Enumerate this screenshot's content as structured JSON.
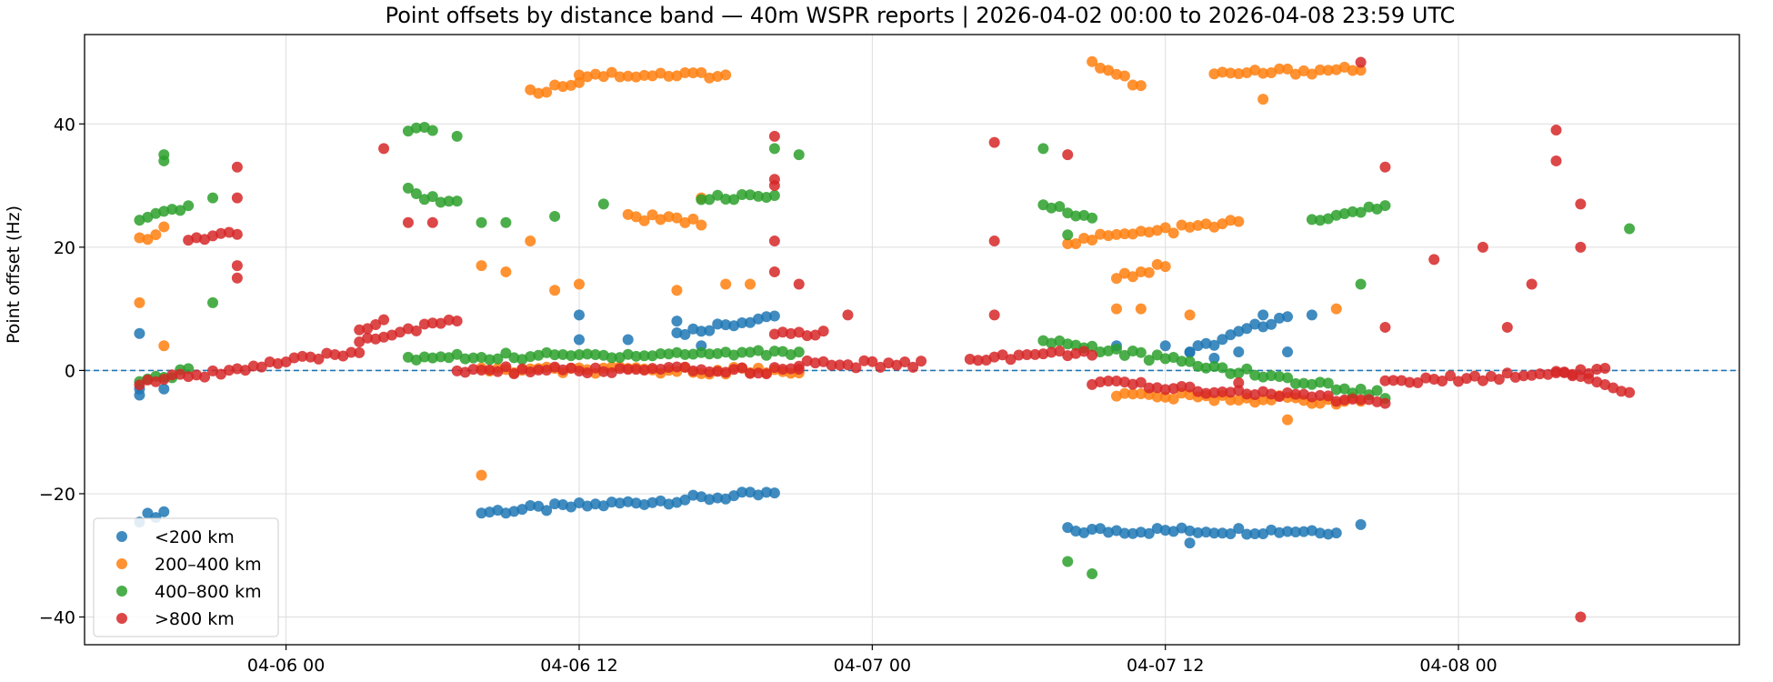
{
  "chart_data": {
    "type": "scatter",
    "title": "Point offsets by distance band — 40m WSPR reports | 2026-04-02 00:00 to 2026-04-08 23:59 UTC",
    "xlabel": "",
    "ylabel": "Point offset (Hz)",
    "x_tick_labels": [
      "04-06 00",
      "04-06 12",
      "04-07 00",
      "04-07 12",
      "04-08 00"
    ],
    "x_ticks": [
      "2026-04-06 00:00",
      "2026-04-06 12:00",
      "2026-04-07 00:00",
      "2026-04-07 12:00",
      "2026-04-08 00:00"
    ],
    "xlim": [
      "2026-04-05 15:45",
      "2026-04-08 11:30"
    ],
    "y_ticks": [
      -40,
      -20,
      0,
      20,
      40
    ],
    "y_tick_labels": [
      "−40",
      "−20",
      "0",
      "20",
      "40"
    ],
    "ylim": [
      -44.5,
      54.5
    ],
    "grid": true,
    "reference_line": {
      "y": 0,
      "style": "dashed",
      "color": "#1f77b4"
    },
    "legend_position": "lower-left",
    "colors": [
      "#1f77b4",
      "#ff7f0e",
      "#2ca02c",
      "#d62728"
    ],
    "series": [
      {
        "name": "<200 km",
        "color": "#1f77b4",
        "segments": [
          {
            "start": "2026-04-05 18:00",
            "end": "2026-04-05 19:00",
            "y0": -24,
            "y1": -23
          },
          {
            "start": "2026-04-06 08:00",
            "end": "2026-04-06 20:00",
            "y0": -23,
            "y1": -20
          },
          {
            "start": "2026-04-07 08:00",
            "end": "2026-04-07 19:00",
            "y0": -26,
            "y1": -26
          },
          {
            "start": "2026-04-06 16:00",
            "end": "2026-04-06 20:00",
            "y0": 6,
            "y1": 9
          },
          {
            "start": "2026-04-07 13:00",
            "end": "2026-04-07 17:00",
            "y0": 3,
            "y1": 9
          }
        ],
        "points": [
          {
            "x": "2026-04-05 18:00",
            "y": -4
          },
          {
            "x": "2026-04-05 18:00",
            "y": 6
          },
          {
            "x": "2026-04-05 18:00",
            "y": -3
          },
          {
            "x": "2026-04-05 19:00",
            "y": -3
          },
          {
            "x": "2026-04-06 12:00",
            "y": 9
          },
          {
            "x": "2026-04-06 12:00",
            "y": 5
          },
          {
            "x": "2026-04-06 14:00",
            "y": 5
          },
          {
            "x": "2026-04-06 16:00",
            "y": 8
          },
          {
            "x": "2026-04-06 17:00",
            "y": 4
          },
          {
            "x": "2026-04-07 10:00",
            "y": 4
          },
          {
            "x": "2026-04-07 12:00",
            "y": 4
          },
          {
            "x": "2026-04-07 13:00",
            "y": 3
          },
          {
            "x": "2026-04-07 14:00",
            "y": 2
          },
          {
            "x": "2026-04-07 15:00",
            "y": 3
          },
          {
            "x": "2026-04-07 16:00",
            "y": 9
          },
          {
            "x": "2026-04-07 17:00",
            "y": 3
          },
          {
            "x": "2026-04-07 18:00",
            "y": 9
          },
          {
            "x": "2026-04-07 20:00",
            "y": -25
          },
          {
            "x": "2026-04-07 13:00",
            "y": -28
          }
        ]
      },
      {
        "name": "200–400 km",
        "color": "#ff7f0e",
        "segments": [
          {
            "start": "2026-04-06 10:00",
            "end": "2026-04-06 12:00",
            "y0": 45,
            "y1": 47
          },
          {
            "start": "2026-04-06 12:00",
            "end": "2026-04-06 18:00",
            "y0": 48,
            "y1": 48
          },
          {
            "start": "2026-04-07 09:00",
            "end": "2026-04-07 11:00",
            "y0": 50,
            "y1": 46
          },
          {
            "start": "2026-04-07 14:00",
            "end": "2026-04-07 20:00",
            "y0": 48,
            "y1": 49
          },
          {
            "start": "2026-04-06 14:00",
            "end": "2026-04-06 17:00",
            "y0": 25,
            "y1": 24
          },
          {
            "start": "2026-04-07 08:00",
            "end": "2026-04-07 15:00",
            "y0": 21,
            "y1": 24
          },
          {
            "start": "2026-04-07 10:00",
            "end": "2026-04-07 12:00",
            "y0": 15,
            "y1": 17
          },
          {
            "start": "2026-04-05 18:00",
            "end": "2026-04-05 19:00",
            "y0": 21,
            "y1": 23
          },
          {
            "start": "2026-04-06 08:00",
            "end": "2026-04-06 21:00",
            "y0": 0,
            "y1": 0
          },
          {
            "start": "2026-04-07 10:00",
            "end": "2026-04-07 20:00",
            "y0": -4,
            "y1": -5
          }
        ],
        "points": [
          {
            "x": "2026-04-05 18:00",
            "y": 11
          },
          {
            "x": "2026-04-05 19:00",
            "y": 4
          },
          {
            "x": "2026-04-06 08:00",
            "y": 17
          },
          {
            "x": "2026-04-06 08:00",
            "y": -17
          },
          {
            "x": "2026-04-06 09:00",
            "y": 16
          },
          {
            "x": "2026-04-06 10:00",
            "y": 21
          },
          {
            "x": "2026-04-06 11:00",
            "y": 13
          },
          {
            "x": "2026-04-06 12:00",
            "y": 14
          },
          {
            "x": "2026-04-06 16:00",
            "y": 13
          },
          {
            "x": "2026-04-06 17:00",
            "y": 28
          },
          {
            "x": "2026-04-06 18:00",
            "y": 14
          },
          {
            "x": "2026-04-06 19:00",
            "y": 14
          },
          {
            "x": "2026-04-07 10:00",
            "y": 10
          },
          {
            "x": "2026-04-07 11:00",
            "y": 10
          },
          {
            "x": "2026-04-07 13:00",
            "y": 9
          },
          {
            "x": "2026-04-07 19:00",
            "y": 10
          },
          {
            "x": "2026-04-07 16:00",
            "y": 44
          },
          {
            "x": "2026-04-07 17:00",
            "y": -8
          }
        ]
      },
      {
        "name": "400–800 km",
        "color": "#2ca02c",
        "segments": [
          {
            "start": "2026-04-05 18:00",
            "end": "2026-04-05 20:00",
            "y0": 24,
            "y1": 27
          },
          {
            "start": "2026-04-06 05:00",
            "end": "2026-04-06 07:00",
            "y0": 29,
            "y1": 27
          },
          {
            "start": "2026-04-06 17:00",
            "end": "2026-04-06 20:00",
            "y0": 28,
            "y1": 28
          },
          {
            "start": "2026-04-07 07:00",
            "end": "2026-04-07 09:00",
            "y0": 27,
            "y1": 25
          },
          {
            "start": "2026-04-07 18:00",
            "end": "2026-04-07 21:00",
            "y0": 24,
            "y1": 27
          },
          {
            "start": "2026-04-06 05:00",
            "end": "2026-04-06 06:00",
            "y0": 39,
            "y1": 39
          },
          {
            "start": "2026-04-05 18:00",
            "end": "2026-04-05 20:00",
            "y0": -2,
            "y1": 0
          },
          {
            "start": "2026-04-06 05:00",
            "end": "2026-04-06 21:00",
            "y0": 2,
            "y1": 3
          },
          {
            "start": "2026-04-07 07:00",
            "end": "2026-04-07 21:00",
            "y0": 5,
            "y1": -4
          }
        ],
        "points": [
          {
            "x": "2026-04-05 19:00",
            "y": 34
          },
          {
            "x": "2026-04-05 19:00",
            "y": 35
          },
          {
            "x": "2026-04-05 21:00",
            "y": 28
          },
          {
            "x": "2026-04-05 21:00",
            "y": 11
          },
          {
            "x": "2026-04-06 07:00",
            "y": 38
          },
          {
            "x": "2026-04-06 08:00",
            "y": 24
          },
          {
            "x": "2026-04-06 09:00",
            "y": 24
          },
          {
            "x": "2026-04-06 11:00",
            "y": 25
          },
          {
            "x": "2026-04-06 13:00",
            "y": 27
          },
          {
            "x": "2026-04-06 20:00",
            "y": 36
          },
          {
            "x": "2026-04-06 21:00",
            "y": 35
          },
          {
            "x": "2026-04-07 07:00",
            "y": 36
          },
          {
            "x": "2026-04-07 08:00",
            "y": 22
          },
          {
            "x": "2026-04-07 08:00",
            "y": -31
          },
          {
            "x": "2026-04-07 09:00",
            "y": -33
          },
          {
            "x": "2026-04-07 20:00",
            "y": 14
          },
          {
            "x": "2026-04-08 07:00",
            "y": 23
          }
        ]
      },
      {
        "name": ">800 km",
        "color": "#d62728",
        "segments": [
          {
            "start": "2026-04-05 18:00",
            "end": "2026-04-06 03:00",
            "y0": -2,
            "y1": 3
          },
          {
            "start": "2026-04-06 03:00",
            "end": "2026-04-06 07:00",
            "y0": 5,
            "y1": 8
          },
          {
            "start": "2026-04-06 07:00",
            "end": "2026-04-06 21:00",
            "y0": 0,
            "y1": 0
          },
          {
            "start": "2026-04-06 21:00",
            "end": "2026-04-07 02:00",
            "y0": 1,
            "y1": 1
          },
          {
            "start": "2026-04-07 04:00",
            "end": "2026-04-07 09:00",
            "y0": 2,
            "y1": 3
          },
          {
            "start": "2026-04-07 09:00",
            "end": "2026-04-07 21:00",
            "y0": -2,
            "y1": -5
          },
          {
            "start": "2026-04-07 21:00",
            "end": "2026-04-08 06:00",
            "y0": -2,
            "y1": 0
          },
          {
            "start": "2026-04-08 04:00",
            "end": "2026-04-08 07:00",
            "y0": 0,
            "y1": -4
          },
          {
            "start": "2026-04-05 20:00",
            "end": "2026-04-05 22:00",
            "y0": 21,
            "y1": 22
          },
          {
            "start": "2026-04-06 03:00",
            "end": "2026-04-06 04:00",
            "y0": 7,
            "y1": 8
          },
          {
            "start": "2026-04-06 20:00",
            "end": "2026-04-06 22:00",
            "y0": 6,
            "y1": 6
          }
        ],
        "points": [
          {
            "x": "2026-04-05 22:00",
            "y": 33
          },
          {
            "x": "2026-04-05 22:00",
            "y": 28
          },
          {
            "x": "2026-04-05 22:00",
            "y": 17
          },
          {
            "x": "2026-04-05 22:00",
            "y": 15
          },
          {
            "x": "2026-04-06 04:00",
            "y": 36
          },
          {
            "x": "2026-04-06 05:00",
            "y": 24
          },
          {
            "x": "2026-04-06 06:00",
            "y": 24
          },
          {
            "x": "2026-04-06 20:00",
            "y": 38
          },
          {
            "x": "2026-04-06 20:00",
            "y": 31
          },
          {
            "x": "2026-04-06 20:00",
            "y": 30
          },
          {
            "x": "2026-04-06 20:00",
            "y": 21
          },
          {
            "x": "2026-04-06 20:00",
            "y": 16
          },
          {
            "x": "2026-04-06 21:00",
            "y": 14
          },
          {
            "x": "2026-04-06 23:00",
            "y": 9
          },
          {
            "x": "2026-04-07 05:00",
            "y": 37
          },
          {
            "x": "2026-04-07 05:00",
            "y": 21
          },
          {
            "x": "2026-04-07 05:00",
            "y": 9
          },
          {
            "x": "2026-04-07 08:00",
            "y": 35
          },
          {
            "x": "2026-04-07 20:00",
            "y": 50
          },
          {
            "x": "2026-04-07 21:00",
            "y": 33
          },
          {
            "x": "2026-04-07 21:00",
            "y": 7
          },
          {
            "x": "2026-04-07 23:00",
            "y": 18
          },
          {
            "x": "2026-04-08 01:00",
            "y": 20
          },
          {
            "x": "2026-04-08 02:00",
            "y": 7
          },
          {
            "x": "2026-04-08 03:00",
            "y": 14
          },
          {
            "x": "2026-04-08 04:00",
            "y": 39
          },
          {
            "x": "2026-04-08 04:00",
            "y": 34
          },
          {
            "x": "2026-04-08 05:00",
            "y": 27
          },
          {
            "x": "2026-04-08 05:00",
            "y": 20
          },
          {
            "x": "2026-04-08 05:00",
            "y": -40
          },
          {
            "x": "2026-04-07 15:00",
            "y": -2
          }
        ]
      }
    ]
  }
}
